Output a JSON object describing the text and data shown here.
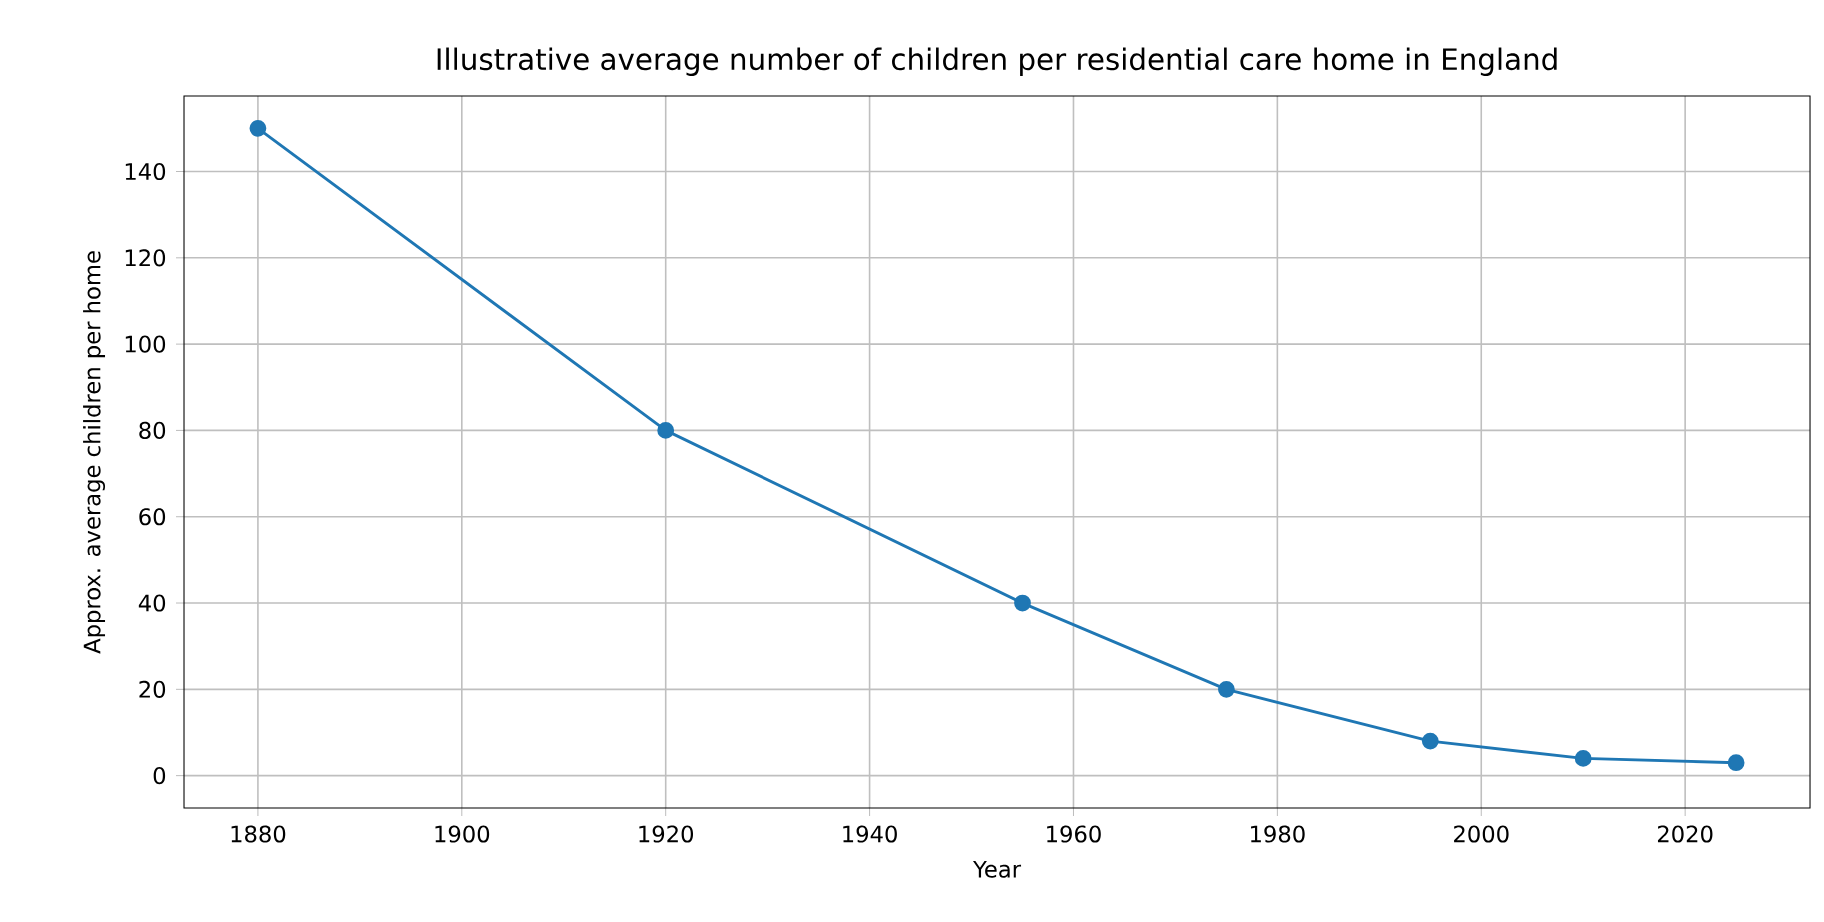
{
  "chart_data": {
    "type": "line",
    "title": "Illustrative average number of children per residential care home in England",
    "xlabel": "Year",
    "ylabel": "Approx. average children per home",
    "x": [
      1880,
      1920,
      1955,
      1975,
      1995,
      2010,
      2025
    ],
    "series": [
      {
        "color": "#1f77b4",
        "values": [
          150,
          80,
          40,
          20,
          8,
          4,
          3
        ]
      }
    ],
    "xlim": [
      1872.75,
      2032.25
    ],
    "ylim": [
      -7.5,
      157.5
    ],
    "xticks": [
      1880,
      1900,
      1920,
      1940,
      1960,
      1980,
      2000,
      2020
    ],
    "yticks": [
      0,
      20,
      40,
      60,
      80,
      100,
      120,
      140
    ],
    "grid": true,
    "marker": "circle",
    "line_style": "solid"
  }
}
